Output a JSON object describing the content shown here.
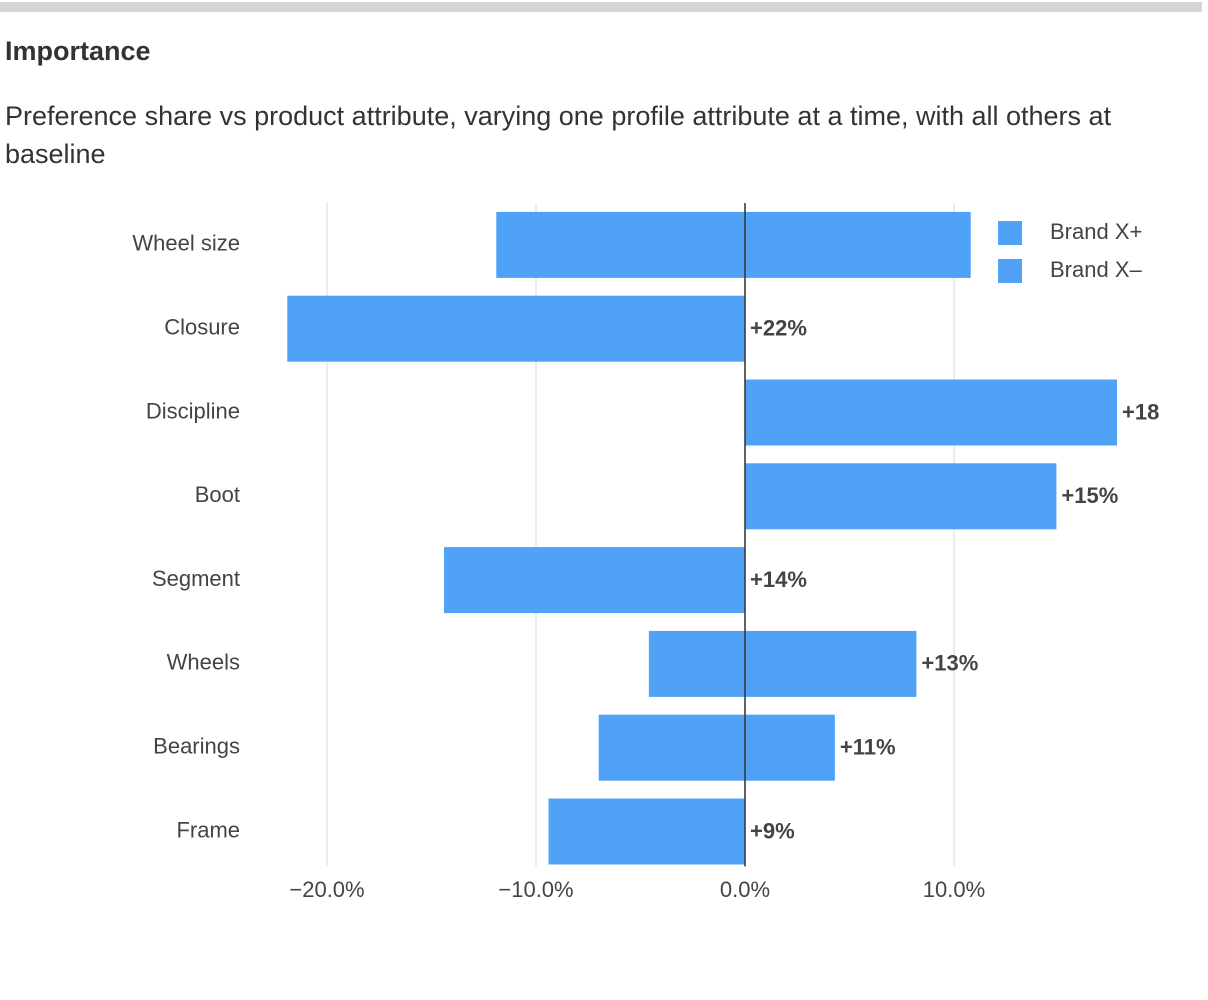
{
  "chart_data": {
    "type": "bar",
    "orientation": "horizontal",
    "title": "Importance",
    "subtitle": "Preference share vs product attribute, varying one profile attribute at a time, with all others at baseline",
    "categories": [
      "Wheel size",
      "Closure",
      "Discipline",
      "Boot",
      "Segment",
      "Wheels",
      "Bearings",
      "Frame"
    ],
    "series": [
      {
        "name": "Brand X+",
        "color": "#50a2f6",
        "values": [
          10.8,
          0,
          17.8,
          14.9,
          0,
          8.2,
          4.3,
          0
        ]
      },
      {
        "name": "Brand X–",
        "color": "#50a2f6",
        "values": [
          -11.9,
          -21.9,
          0,
          0,
          -14.4,
          -4.6,
          -7.0,
          -9.4
        ]
      }
    ],
    "data_labels": {
      "values": [
        null,
        22,
        18,
        15,
        14,
        13,
        11,
        9
      ],
      "value_labels": [
        null,
        "+22%",
        "+18",
        "+15%",
        "+14%",
        "+13%",
        "+11%",
        "+9%"
      ]
    },
    "xlim": [
      -24,
      20
    ],
    "xticks": [
      {
        "value": -20,
        "label": "−20.0%"
      },
      {
        "value": -10,
        "label": "−10.0%"
      },
      {
        "value": 0,
        "label": "0.0%"
      },
      {
        "value": 10,
        "label": "10.0%"
      }
    ],
    "grid": true,
    "legend": "top-right"
  }
}
